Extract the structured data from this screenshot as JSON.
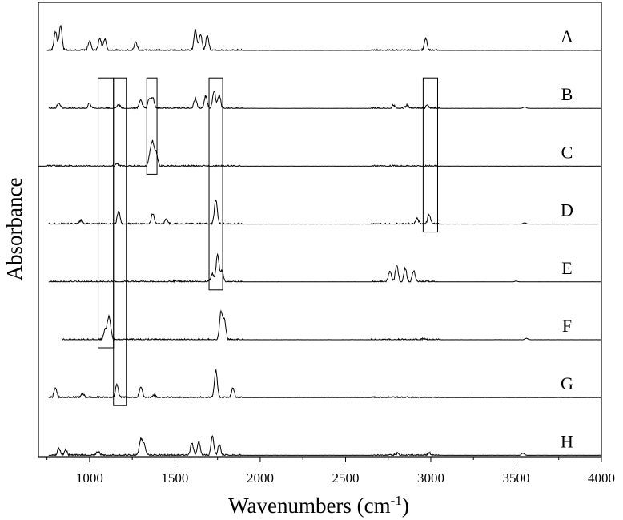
{
  "chart_data": {
    "type": "line",
    "xlabel": "Wavenumbers (cm",
    "xlabel_superscript": "-1",
    "xlabel_suffix": ")",
    "ylabel": "Absorbance",
    "xlim": [
      700,
      4000
    ],
    "xticks": [
      1000,
      1500,
      2000,
      2500,
      3000,
      3500,
      4000
    ],
    "grid": false,
    "legend": "none",
    "series": [
      {
        "name": "A",
        "x_start": 750,
        "peaks": [
          [
            800,
            0.7
          ],
          [
            830,
            0.9
          ],
          [
            1000,
            0.35
          ],
          [
            1060,
            0.45
          ],
          [
            1090,
            0.4
          ],
          [
            1270,
            0.3
          ],
          [
            1620,
            0.75
          ],
          [
            1650,
            0.6
          ],
          [
            1690,
            0.55
          ],
          [
            2970,
            0.45
          ]
        ]
      },
      {
        "name": "B",
        "x_start": 760,
        "peaks": [
          [
            820,
            0.2
          ],
          [
            1000,
            0.2
          ],
          [
            1170,
            0.15
          ],
          [
            1300,
            0.3
          ],
          [
            1350,
            0.35
          ],
          [
            1370,
            0.4
          ],
          [
            1620,
            0.35
          ],
          [
            1680,
            0.45
          ],
          [
            1730,
            0.65
          ],
          [
            1760,
            0.5
          ],
          [
            2780,
            0.12
          ],
          [
            2860,
            0.12
          ],
          [
            2980,
            0.1
          ],
          [
            3550,
            0.05
          ]
        ]
      },
      {
        "name": "C",
        "x_start": 700,
        "peaks": [
          [
            1160,
            0.08
          ],
          [
            1355,
            0.45
          ],
          [
            1370,
            0.8
          ],
          [
            1390,
            0.5
          ]
        ]
      },
      {
        "name": "D",
        "x_start": 760,
        "peaks": [
          [
            950,
            0.15
          ],
          [
            1170,
            0.45
          ],
          [
            1370,
            0.4
          ],
          [
            1450,
            0.2
          ],
          [
            1740,
            0.9
          ],
          [
            2920,
            0.2
          ],
          [
            2990,
            0.35
          ],
          [
            3550,
            0.05
          ]
        ]
      },
      {
        "name": "E",
        "x_start": 760,
        "peaks": [
          [
            1500,
            0.05
          ],
          [
            1720,
            0.3
          ],
          [
            1750,
            1.0
          ],
          [
            1775,
            0.4
          ],
          [
            2760,
            0.4
          ],
          [
            2800,
            0.6
          ],
          [
            2850,
            0.5
          ],
          [
            2900,
            0.4
          ],
          [
            3500,
            0.03
          ]
        ]
      },
      {
        "name": "F",
        "x_start": 840,
        "peaks": [
          [
            1090,
            0.35
          ],
          [
            1110,
            0.6
          ],
          [
            1120,
            0.4
          ],
          [
            1770,
            1.0
          ],
          [
            1790,
            0.7
          ],
          [
            2960,
            0.05
          ],
          [
            3560,
            0.05
          ]
        ]
      },
      {
        "name": "G",
        "x_start": 760,
        "peaks": [
          [
            800,
            0.35
          ],
          [
            960,
            0.15
          ],
          [
            1160,
            0.5
          ],
          [
            1300,
            0.4
          ],
          [
            1380,
            0.1
          ],
          [
            1740,
            1.0
          ],
          [
            1840,
            0.35
          ]
        ]
      },
      {
        "name": "H",
        "x_start": 760,
        "peaks": [
          [
            820,
            0.25
          ],
          [
            860,
            0.2
          ],
          [
            1050,
            0.15
          ],
          [
            1300,
            0.6
          ],
          [
            1320,
            0.4
          ],
          [
            1600,
            0.45
          ],
          [
            1640,
            0.5
          ],
          [
            1720,
            0.7
          ],
          [
            1760,
            0.4
          ],
          [
            2800,
            0.08
          ],
          [
            2990,
            0.1
          ],
          [
            3540,
            0.08
          ]
        ]
      }
    ],
    "highlight_ranges": [
      {
        "x_range": [
          1050,
          1140
        ],
        "series_span": [
          "B",
          "F"
        ]
      },
      {
        "x_range": [
          1140,
          1215
        ],
        "series_span": [
          "B",
          "G"
        ]
      },
      {
        "x_range": [
          1335,
          1395
        ],
        "series_span": [
          "B",
          "C"
        ]
      },
      {
        "x_range": [
          1700,
          1780
        ],
        "series_span": [
          "B",
          "E"
        ]
      },
      {
        "x_range": [
          2955,
          3040
        ],
        "series_span": [
          "B",
          "D"
        ]
      }
    ]
  }
}
